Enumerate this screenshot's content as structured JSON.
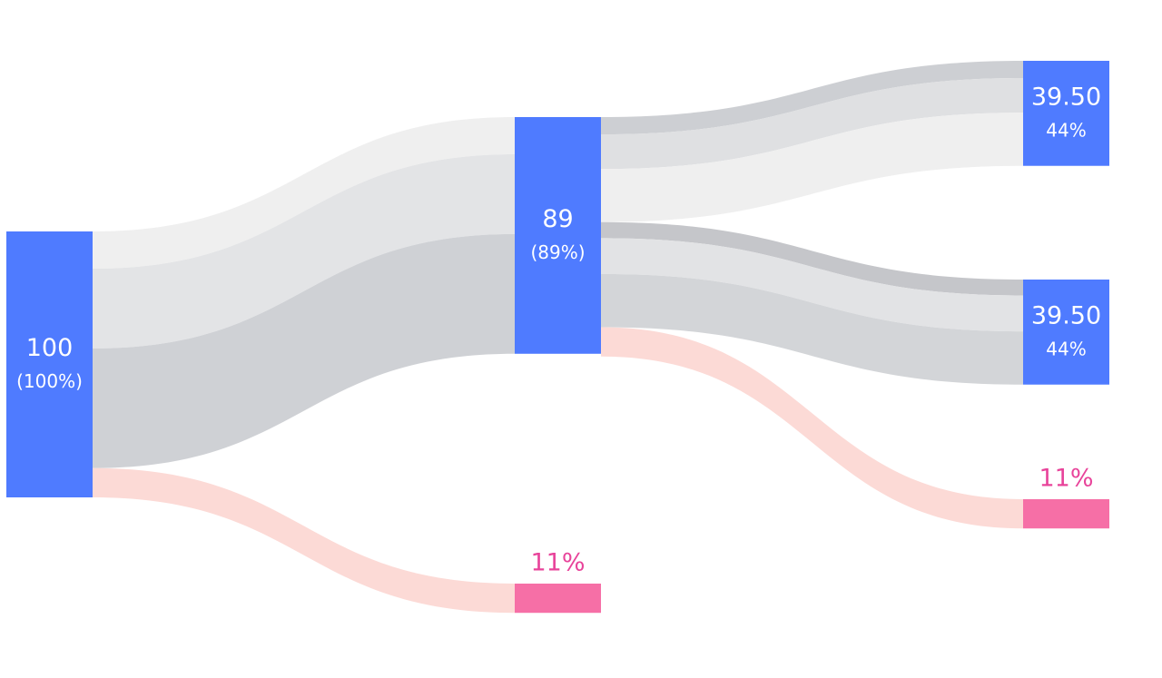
{
  "chart_data": {
    "type": "sankey",
    "node_color": "#4f7bff",
    "drop_color": "#f66fa6",
    "drop_text_color": "#e8439a",
    "nodes": [
      {
        "value": 100,
        "percent": 100,
        "percent_label": "(100%)"
      },
      {
        "value": 89,
        "percent": 89,
        "percent_label": "(89%)"
      },
      {
        "value": 39.5,
        "value_label": "39.50",
        "percent": 44,
        "percent_label": "44%"
      },
      {
        "value": 39.5,
        "value_label": "39.50",
        "percent": 44,
        "percent_label": "44%"
      },
      {
        "value": 11,
        "percent": 11,
        "percent_label": "11%",
        "drop": true
      },
      {
        "value": 11,
        "percent": 11,
        "percent_label": "11%",
        "drop": true
      }
    ],
    "links": [
      {
        "source": 0,
        "target": 1,
        "bands": [
          14,
          30,
          45
        ],
        "colors": [
          "#efefef",
          "#e3e4e6",
          "#cfd1d5"
        ]
      },
      {
        "source": 0,
        "target": 4,
        "bands": [
          11
        ],
        "colors": [
          "#fcdad6"
        ]
      },
      {
        "source": 1,
        "target": 2,
        "bands": [
          6.5,
          13,
          20
        ],
        "colors": [
          "#cdcfd3",
          "#dfe0e2",
          "#efefef"
        ]
      },
      {
        "source": 1,
        "target": 3,
        "bands": [
          6,
          13.5,
          20
        ],
        "colors": [
          "#c5c6ca",
          "#e2e3e5",
          "#d3d5d8"
        ]
      },
      {
        "source": 1,
        "target": 5,
        "bands": [
          11
        ],
        "colors": [
          "#fcdad6"
        ]
      }
    ]
  }
}
